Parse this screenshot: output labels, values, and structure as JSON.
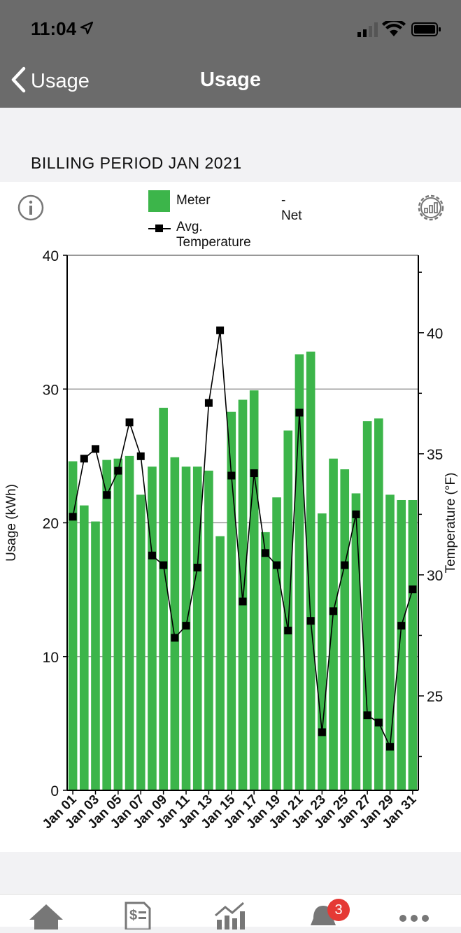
{
  "status": {
    "time": "11:04",
    "location_icon": "location-arrow-icon"
  },
  "nav": {
    "back_label": "Usage",
    "title": "Usage"
  },
  "billing_period": "BILLING PERIOD JAN 2021",
  "legend": {
    "meter": "Meter",
    "net": "- Net",
    "temperature": "Avg. Temperature"
  },
  "tabs": [
    {
      "icon": "home-icon"
    },
    {
      "icon": "bill-icon"
    },
    {
      "icon": "usage-chart-icon"
    },
    {
      "icon": "bell-icon",
      "badge": "3"
    },
    {
      "icon": "more-icon"
    }
  ],
  "colors": {
    "bar": "#3cb54a",
    "header": "#6b6b6b",
    "badge": "#e53935"
  },
  "chart_data": {
    "type": "bar",
    "categories": [
      "Jan 01",
      "Jan 02",
      "Jan 03",
      "Jan 04",
      "Jan 05",
      "Jan 06",
      "Jan 07",
      "Jan 08",
      "Jan 09",
      "Jan 10",
      "Jan 11",
      "Jan 12",
      "Jan 13",
      "Jan 14",
      "Jan 15",
      "Jan 16",
      "Jan 17",
      "Jan 18",
      "Jan 19",
      "Jan 20",
      "Jan 21",
      "Jan 22",
      "Jan 23",
      "Jan 24",
      "Jan 25",
      "Jan 26",
      "Jan 27",
      "Jan 28",
      "Jan 29",
      "Jan 30",
      "Jan 31"
    ],
    "tick_labels": [
      "Jan 01",
      "Jan 03",
      "Jan 05",
      "Jan 07",
      "Jan 09",
      "Jan 11",
      "Jan 13",
      "Jan 15",
      "Jan 17",
      "Jan 19",
      "Jan 21",
      "Jan 23",
      "Jan 25",
      "Jan 27",
      "Jan 29",
      "Jan 31"
    ],
    "series": [
      {
        "name": "Meter",
        "axis": "left",
        "values": [
          24.6,
          21.3,
          20.1,
          24.7,
          24.8,
          25.0,
          22.1,
          24.2,
          28.6,
          24.9,
          24.2,
          24.2,
          23.9,
          19.0,
          28.3,
          29.2,
          29.9,
          19.3,
          21.9,
          26.9,
          32.6,
          32.8,
          20.7,
          24.8,
          24.0,
          22.2,
          27.6,
          27.8,
          22.1,
          21.7,
          21.7
        ]
      },
      {
        "name": "Avg. Temperature",
        "axis": "right",
        "type": "line",
        "values": [
          32.4,
          34.8,
          35.2,
          33.3,
          34.3,
          36.3,
          34.9,
          30.8,
          30.4,
          27.4,
          27.9,
          30.3,
          37.1,
          40.1,
          34.1,
          28.9,
          34.2,
          30.9,
          30.4,
          27.7,
          36.7,
          28.1,
          23.5,
          28.5,
          30.4,
          32.5,
          24.2,
          23.9,
          22.9,
          27.9,
          29.4
        ]
      }
    ],
    "ylabel": "Usage (kWh)",
    "ylim": [
      0,
      40
    ],
    "yticks": [
      0,
      10,
      20,
      30,
      40
    ],
    "y2label": "Temperature (°F)",
    "y2lim": [
      21.1,
      43.2
    ],
    "y2ticks": [
      25,
      30,
      35,
      40
    ],
    "grid": true
  }
}
